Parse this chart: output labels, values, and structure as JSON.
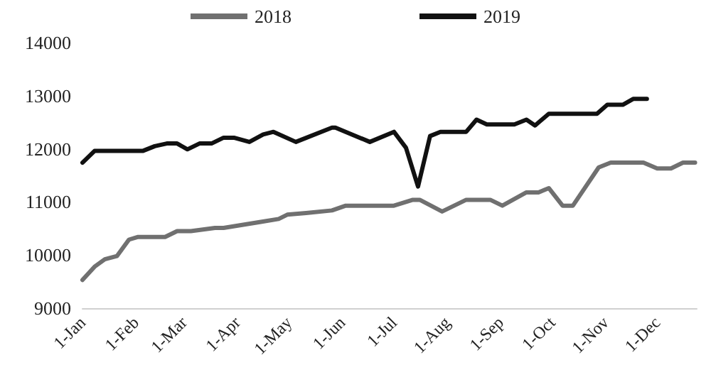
{
  "chart_data": {
    "type": "line",
    "legend": "top",
    "grid": false,
    "marker": "none",
    "line_style": "solid",
    "xlim": [
      "--01-01",
      "--12-24"
    ],
    "xticks": [
      {
        "value": "--01-01",
        "label": "1-Jan"
      },
      {
        "value": "--02-01",
        "label": "1-Feb"
      },
      {
        "value": "--03-01",
        "label": "1-Mar"
      },
      {
        "value": "--04-01",
        "label": "1-Apr"
      },
      {
        "value": "--05-01",
        "label": "1-May"
      },
      {
        "value": "--06-01",
        "label": "1-Jun"
      },
      {
        "value": "--07-01",
        "label": "1-Jul"
      },
      {
        "value": "--08-01",
        "label": "1-Aug"
      },
      {
        "value": "--09-01",
        "label": "1-Sep"
      },
      {
        "value": "--10-01",
        "label": "1-Oct"
      },
      {
        "value": "--11-01",
        "label": "1-Nov"
      },
      {
        "value": "--12-01",
        "label": "1-Dec"
      }
    ],
    "ylim": [
      9000,
      14000
    ],
    "yticks": [
      9000,
      10000,
      11000,
      12000,
      13000,
      14000
    ],
    "series": [
      {
        "name": "2018",
        "color": "#707070",
        "x": [
          "--01-01",
          "--01-08",
          "--01-14",
          "--01-21",
          "--01-28",
          "--02-02",
          "--02-18",
          "--02-25",
          "--03-05",
          "--03-19",
          "--03-24",
          "--04-14",
          "--04-25",
          "--04-30",
          "--05-11",
          "--05-26",
          "--06-03",
          "--07-01",
          "--07-12",
          "--07-16",
          "--07-29",
          "--08-12",
          "--08-26",
          "--09-02",
          "--09-16",
          "--09-23",
          "--09-29",
          "--10-07",
          "--10-13",
          "--10-28",
          "--11-04",
          "--11-23",
          "--12-01",
          "--12-09",
          "--12-16",
          "--12-23"
        ],
        "values": [
          9530,
          9780,
          9920,
          9980,
          10290,
          10340,
          10340,
          10450,
          10450,
          10510,
          10510,
          10620,
          10680,
          10760,
          10790,
          10840,
          10930,
          10930,
          11040,
          11040,
          10820,
          11040,
          11040,
          10930,
          11180,
          11180,
          11260,
          10930,
          10930,
          11650,
          11740,
          11740,
          11630,
          11630,
          11740,
          11740
        ]
      },
      {
        "name": "2019",
        "color": "#111111",
        "x": [
          "--01-01",
          "--01-08",
          "--02-05",
          "--02-12",
          "--02-19",
          "--02-25",
          "--03-03",
          "--03-10",
          "--03-17",
          "--03-24",
          "--03-30",
          "--04-08",
          "--04-16",
          "--04-22",
          "--05-05",
          "--05-26",
          "--05-28",
          "--06-17",
          "--07-01",
          "--07-08",
          "--07-15",
          "--07-22",
          "--07-28",
          "--08-12",
          "--08-18",
          "--08-24",
          "--09-09",
          "--09-16",
          "--09-21",
          "--09-29",
          "--10-27",
          "--11-02",
          "--11-11",
          "--11-17",
          "--11-25"
        ],
        "values": [
          11740,
          11960,
          11960,
          12050,
          12100,
          12100,
          11990,
          12100,
          12100,
          12210,
          12210,
          12130,
          12270,
          12320,
          12130,
          12400,
          12400,
          12130,
          12320,
          12020,
          11290,
          12240,
          12320,
          12320,
          12550,
          12460,
          12460,
          12550,
          12440,
          12660,
          12660,
          12830,
          12830,
          12940,
          12940
        ]
      }
    ]
  }
}
